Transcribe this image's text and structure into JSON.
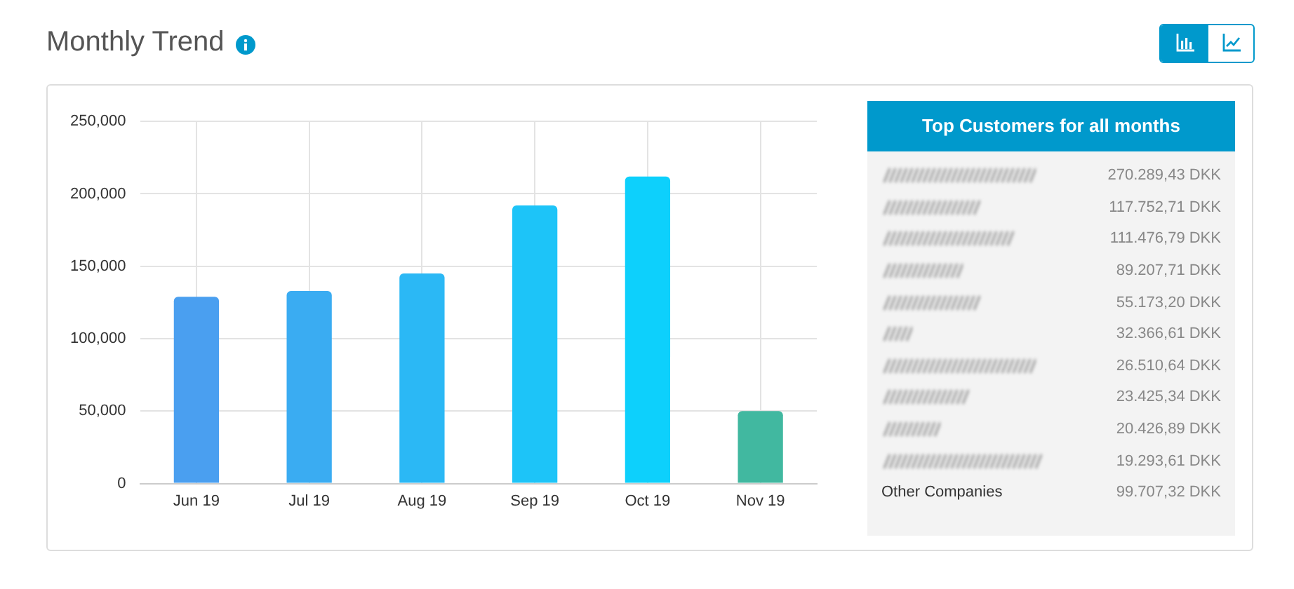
{
  "chart_data": [
    {
      "type": "bar",
      "title": "Monthly Trend",
      "categories": [
        "Jun 19",
        "Jul 19",
        "Aug 19",
        "Sep 19",
        "Oct 19",
        "Nov 19"
      ],
      "values": [
        129000,
        133000,
        145000,
        192000,
        212000,
        50000
      ],
      "colors": [
        "#4a9ff0",
        "#3aacf2",
        "#2bb8f5",
        "#1dc4f8",
        "#0dd0fc",
        "#41b8a0"
      ],
      "ylim": [
        0,
        250000
      ],
      "yticks": [
        {
          "value": 0,
          "label": "0"
        },
        {
          "value": 50000,
          "label": "50,000"
        },
        {
          "value": 100000,
          "label": "100,000"
        },
        {
          "value": 150000,
          "label": "150,000"
        },
        {
          "value": 200000,
          "label": "200,000"
        },
        {
          "value": 250000,
          "label": "250,000"
        }
      ],
      "grid": true,
      "legend": false
    },
    {
      "type": "other",
      "title": "Top Customers for all months",
      "categories": [
        null,
        null,
        null,
        null,
        null,
        null,
        null,
        null,
        null,
        null,
        "Other Companies"
      ],
      "value_labels": [
        "270.289,43 DKK",
        "117.752,71 DKK",
        "111.476,79 DKK",
        "89.207,71 DKK",
        "55.173,20 DKK",
        "32.366,61 DKK",
        "26.510,64 DKK",
        "23.425,34 DKK",
        "20.426,89 DKK",
        "19.293,61 DKK",
        "99.707,32 DKK"
      ]
    }
  ]
}
